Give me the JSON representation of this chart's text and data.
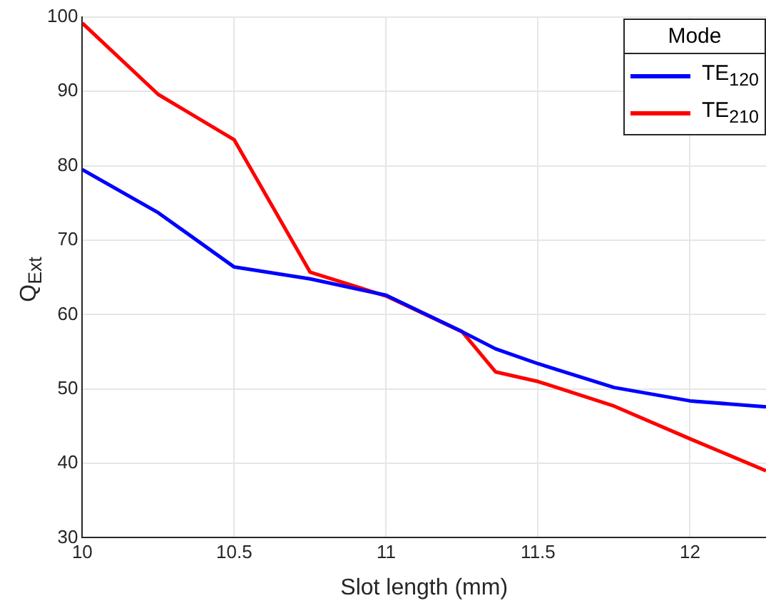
{
  "chart_data": {
    "type": "line",
    "xlabel": "Slot length (mm)",
    "ylabel": "Q$_{Ext}$",
    "legend_title": "Mode",
    "legend": "top right",
    "grid": true,
    "xlim": [
      10,
      12.25
    ],
    "xticks": [
      10,
      10.5,
      11,
      11.5,
      12
    ],
    "ylim": [
      30,
      100
    ],
    "yticks": [
      30,
      40,
      50,
      60,
      70,
      80,
      90,
      100
    ],
    "x": [
      10,
      10.25,
      10.5,
      10.75,
      11,
      11.25,
      11.36,
      11.5,
      11.75,
      12,
      12.25
    ],
    "series": [
      {
        "name": "TE$_{120}$",
        "color": "#0000ff",
        "values": [
          79.5,
          73.7,
          66.4,
          64.8,
          62.6,
          57.7,
          55.4,
          53.4,
          50.2,
          48.4,
          47.6
        ]
      },
      {
        "name": "TE$_{210}$",
        "color": "#ff0000",
        "values": [
          99.2,
          89.6,
          83.5,
          65.7,
          62.5,
          57.7,
          52.3,
          51.0,
          47.7,
          43.3,
          39.0
        ]
      }
    ]
  }
}
